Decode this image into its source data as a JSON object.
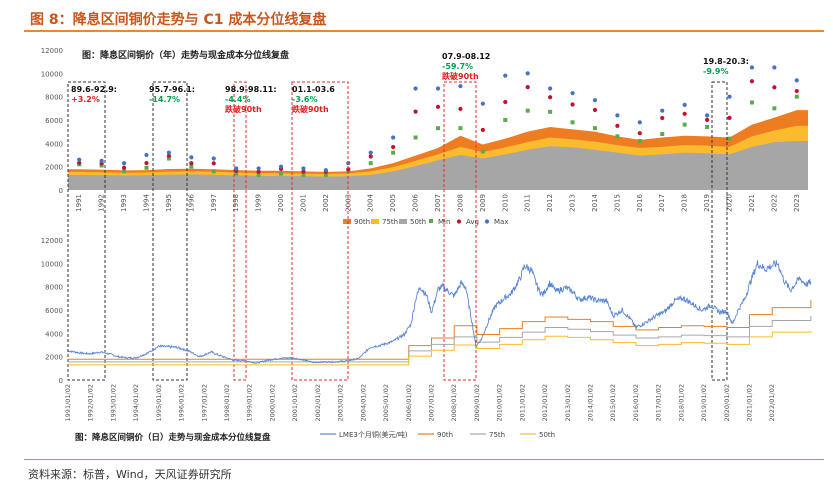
{
  "header": {
    "title": "图 8：降息区间铜价走势与 C1 成本分位线复盘"
  },
  "source": "资料来源：标普，Wind，天风证券研究所",
  "colors": {
    "p90": "#ee7d22",
    "p75": "#fbbb2e",
    "p50": "#a6a6a6",
    "min": "#5aac4a",
    "avg": "#c8102e",
    "max": "#4472c4",
    "lme": "#5b87d1",
    "green_text": "#00a050",
    "red_text": "#e02020",
    "box_black": "#333333",
    "box_red": "#e03030"
  },
  "chart_data": [
    {
      "type": "area",
      "title": "图：降息区间铜价（年）走势与现金成本分位线复盘",
      "y_ticks": [
        "0",
        "2000",
        "4000",
        "6000",
        "8000",
        "10000",
        "12000"
      ],
      "ylim": [
        0,
        12000
      ],
      "categories": [
        "1991",
        "1992",
        "1993",
        "1994",
        "1995",
        "1996",
        "1997",
        "1998",
        "1999",
        "2000",
        "2001",
        "2002",
        "2003",
        "2004",
        "2005",
        "2006",
        "2007",
        "2008",
        "2009",
        "2010",
        "2011",
        "2012",
        "2013",
        "2014",
        "2015",
        "2016",
        "2017",
        "2018",
        "2019",
        "2020",
        "2021",
        "2022",
        "2023"
      ],
      "series": [
        {
          "name": "90th",
          "kind": "area",
          "values": [
            1780,
            1750,
            1680,
            1700,
            1800,
            1820,
            1780,
            1700,
            1650,
            1650,
            1600,
            1550,
            1600,
            1850,
            2300,
            2950,
            3600,
            4650,
            3900,
            4400,
            5000,
            5400,
            5200,
            5000,
            4600,
            4300,
            4500,
            4650,
            4600,
            4500,
            5600,
            6200,
            6850
          ]
        },
        {
          "name": "75th",
          "kind": "area",
          "values": [
            1550,
            1520,
            1480,
            1500,
            1580,
            1600,
            1560,
            1500,
            1450,
            1450,
            1400,
            1380,
            1420,
            1600,
            1950,
            2500,
            3050,
            3700,
            3250,
            3650,
            4100,
            4500,
            4350,
            4150,
            3850,
            3600,
            3700,
            3850,
            3800,
            3700,
            4600,
            5100,
            5500
          ]
        },
        {
          "name": "50th",
          "kind": "area",
          "values": [
            1300,
            1280,
            1250,
            1260,
            1320,
            1340,
            1300,
            1250,
            1200,
            1200,
            1180,
            1150,
            1180,
            1300,
            1600,
            2050,
            2550,
            3000,
            2700,
            3050,
            3450,
            3750,
            3650,
            3450,
            3200,
            2950,
            3050,
            3200,
            3150,
            3050,
            3700,
            4100,
            4200
          ]
        },
        {
          "name": "Min",
          "kind": "marker",
          "values": [
            2200,
            2100,
            1600,
            1900,
            2700,
            2000,
            1600,
            1400,
            1300,
            1400,
            1300,
            1300,
            1600,
            2300,
            3200,
            4500,
            5300,
            5300,
            3300,
            6000,
            6800,
            6700,
            5800,
            5300,
            4600,
            4200,
            4800,
            5600,
            5400,
            4400,
            7500,
            7000,
            8000
          ]
        },
        {
          "name": "Avg",
          "kind": "marker",
          "values": [
            2330,
            2280,
            1910,
            2310,
            2930,
            2290,
            2280,
            1650,
            1570,
            1810,
            1580,
            1560,
            1780,
            2870,
            3680,
            6720,
            7130,
            6950,
            5150,
            7540,
            8820,
            7950,
            7330,
            6860,
            5500,
            4870,
            6170,
            6530,
            6010,
            6180,
            9320,
            8800,
            8480
          ]
        },
        {
          "name": "Max",
          "kind": "marker",
          "values": [
            2600,
            2500,
            2300,
            3000,
            3200,
            2800,
            2700,
            1850,
            1850,
            2000,
            1850,
            1700,
            2300,
            3200,
            4500,
            8700,
            8700,
            8900,
            7400,
            9800,
            10000,
            8700,
            8300,
            7700,
            6400,
            5800,
            6800,
            7300,
            6400,
            8000,
            10500,
            10500,
            9400
          ]
        }
      ],
      "annotations": [
        {
          "label": "89.6-92.9:",
          "value": "+3.2%",
          "value_color": "red"
        },
        {
          "label": "95.7-96.1:",
          "value": "-14.7%",
          "value_color": "green"
        },
        {
          "label": "98.9-98.11:",
          "value": "-4.4%",
          "value_color": "green",
          "note": "跌破90th"
        },
        {
          "label": "01.1-03.6",
          "value": "-3.6%",
          "value_color": "green",
          "note": "跌破90th"
        },
        {
          "label": "07.9-08.12",
          "value": "-59.7%",
          "value_color": "green",
          "note": "跌破90th"
        },
        {
          "label": "19.8-20.3:",
          "value": "-9.9%",
          "value_color": "green"
        }
      ]
    },
    {
      "type": "line",
      "title": "图：降息区间铜价（日）走势与现金成本分位线复盘",
      "y_ticks": [
        "0",
        "2000",
        "4000",
        "6000",
        "8000",
        "10000",
        "12000"
      ],
      "ylim": [
        0,
        12000
      ],
      "x_ticks": [
        "1991/01/02",
        "1992/01/02",
        "1993/01/02",
        "1994/01/02",
        "1995/01/02",
        "1996/01/02",
        "1997/01/02",
        "1998/01/02",
        "1999/01/02",
        "2000/01/02",
        "2001/01/02",
        "2002/01/02",
        "2003/01/02",
        "2004/01/02",
        "2005/01/02",
        "2006/01/02",
        "2007/01/02",
        "2008/01/02",
        "2009/01/02",
        "2010/01/02",
        "2011/01/02",
        "2012/01/02",
        "2013/01/02",
        "2014/01/02",
        "2015/01/02",
        "2016/01/02",
        "2017/01/02",
        "2018/01/02",
        "2019/01/02",
        "2020/01/02",
        "2021/01/02",
        "2022/01/02"
      ],
      "series": [
        {
          "name": "LME3个月铜(美元/吨)",
          "x": [
            1991.0,
            1991.3,
            1991.6,
            1992.0,
            1992.4,
            1992.8,
            1993.2,
            1993.6,
            1994.0,
            1994.5,
            1995.0,
            1995.4,
            1995.8,
            1996.3,
            1996.8,
            1997.3,
            1997.8,
            1998.3,
            1998.8,
            1999.3,
            1999.8,
            2000.3,
            2000.8,
            2001.3,
            2001.8,
            2002.3,
            2002.8,
            2003.3,
            2003.8,
            2004.3,
            2004.8,
            2005.3,
            2005.8,
            2006.1,
            2006.3,
            2006.5,
            2006.8,
            2007.0,
            2007.3,
            2007.5,
            2007.8,
            2008.0,
            2008.3,
            2008.5,
            2008.8,
            2008.95,
            2009.2,
            2009.5,
            2009.8,
            2010.2,
            2010.5,
            2010.9,
            2011.1,
            2011.4,
            2011.7,
            2011.9,
            2012.2,
            2012.5,
            2012.9,
            2013.2,
            2013.5,
            2013.9,
            2014.3,
            2014.7,
            2015.0,
            2015.4,
            2015.8,
            2016.0,
            2016.4,
            2016.9,
            2017.3,
            2017.7,
            2018.1,
            2018.5,
            2018.9,
            2019.3,
            2019.7,
            2020.0,
            2020.25,
            2020.5,
            2020.8,
            2021.0,
            2021.35,
            2021.7,
            2022.0,
            2022.25,
            2022.5,
            2022.8,
            2023.2,
            2023.5,
            2023.7
          ],
          "values": [
            2500,
            2400,
            2300,
            2250,
            2400,
            2250,
            2000,
            1900,
            1900,
            2300,
            2900,
            2850,
            2800,
            2500,
            2000,
            2400,
            2000,
            1700,
            1650,
            1450,
            1700,
            1850,
            1900,
            1750,
            1500,
            1550,
            1550,
            1650,
            1850,
            2800,
            3000,
            3300,
            3900,
            4800,
            6900,
            8000,
            7200,
            5800,
            7800,
            8000,
            7500,
            7200,
            8300,
            8000,
            4800,
            2900,
            3500,
            5000,
            6300,
            7000,
            7400,
            8700,
            9800,
            9400,
            7800,
            7300,
            8300,
            7600,
            7900,
            7600,
            6900,
            7100,
            6800,
            6800,
            5500,
            6000,
            5100,
            4500,
            4900,
            5500,
            5900,
            6800,
            7000,
            6500,
            6000,
            6400,
            5800,
            5900,
            4800,
            6000,
            7000,
            8200,
            10000,
            9500,
            9800,
            10000,
            8600,
            7700,
            8700,
            8200,
            8400
          ]
        },
        {
          "name": "90th",
          "x": [
            1991,
            2006,
            2007,
            2008,
            2009,
            2010,
            2011,
            2012,
            2013,
            2014,
            2015,
            2016,
            2017,
            2018,
            2019,
            2020,
            2021,
            2022,
            2023.7
          ],
          "values": [
            1780,
            2950,
            3600,
            4650,
            3900,
            4400,
            5000,
            5400,
            5200,
            5000,
            4600,
            4300,
            4500,
            4650,
            4600,
            4500,
            5600,
            6200,
            6850
          ]
        },
        {
          "name": "75th",
          "x": [
            1991,
            2006,
            2007,
            2008,
            2009,
            2010,
            2011,
            2012,
            2013,
            2014,
            2015,
            2016,
            2017,
            2018,
            2019,
            2020,
            2021,
            2022,
            2023.7
          ],
          "values": [
            1550,
            2500,
            3050,
            3700,
            3250,
            3650,
            4100,
            4500,
            4350,
            4150,
            3850,
            3600,
            3700,
            3850,
            3800,
            3700,
            4600,
            5100,
            5500
          ]
        },
        {
          "name": "50th",
          "x": [
            1991,
            2006,
            2007,
            2008,
            2009,
            2010,
            2011,
            2012,
            2013,
            2014,
            2015,
            2016,
            2017,
            2018,
            2019,
            2020,
            2021,
            2022,
            2023.7
          ],
          "values": [
            1300,
            2050,
            2550,
            3000,
            2700,
            3050,
            3450,
            3750,
            3650,
            3450,
            3200,
            2950,
            3050,
            3200,
            3150,
            3050,
            3700,
            4100,
            4200
          ]
        }
      ]
    }
  ]
}
